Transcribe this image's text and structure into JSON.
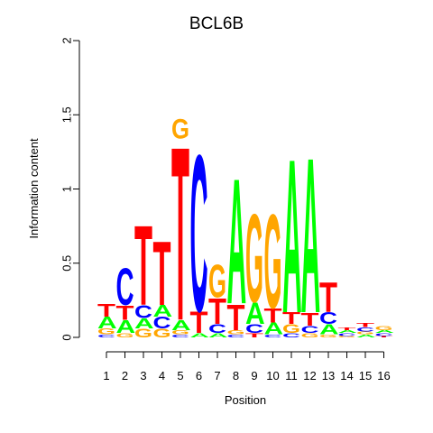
{
  "chart_data": {
    "type": "sequence-logo",
    "title": "BCL6B",
    "xlabel": "Position",
    "ylabel": "Information content",
    "ylim": [
      0,
      2
    ],
    "yticks": [
      "0",
      "0.5",
      "1",
      "1.5",
      "2"
    ],
    "xticks": [
      "1",
      "2",
      "3",
      "4",
      "5",
      "6",
      "7",
      "8",
      "9",
      "10",
      "11",
      "12",
      "13",
      "14",
      "15",
      "16"
    ],
    "colors": {
      "A": "#00ff00",
      "C": "#0000ff",
      "G": "#ffa500",
      "T": "#ff0000"
    },
    "positions": [
      {
        "position": 1,
        "stack": [
          [
            "C",
            0.02
          ],
          [
            "G",
            0.04
          ],
          [
            "A",
            0.08
          ],
          [
            "T",
            0.09
          ]
        ]
      },
      {
        "position": 2,
        "stack": [
          [
            "G",
            0.03
          ],
          [
            "A",
            0.09
          ],
          [
            "T",
            0.1
          ],
          [
            "C",
            0.26
          ]
        ]
      },
      {
        "position": 3,
        "stack": [
          [
            "G",
            0.06
          ],
          [
            "A",
            0.07
          ],
          [
            "C",
            0.09
          ],
          [
            "T",
            0.56
          ]
        ]
      },
      {
        "position": 4,
        "stack": [
          [
            "G",
            0.06
          ],
          [
            "C",
            0.08
          ],
          [
            "A",
            0.08
          ],
          [
            "T",
            0.45
          ]
        ]
      },
      {
        "position": 5,
        "stack": [
          [
            "C",
            0.02
          ],
          [
            "G",
            0.03
          ],
          [
            "A",
            0.07
          ],
          [
            "T",
            1.22
          ],
          [
            "G",
            0.14
          ]
        ]
      },
      {
        "position": 6,
        "stack": [
          [
            "A",
            0.03
          ],
          [
            "T",
            0.15
          ],
          [
            "C",
            1.1
          ]
        ]
      },
      {
        "position": 7,
        "stack": [
          [
            "A",
            0.03
          ],
          [
            "C",
            0.06
          ],
          [
            "T",
            0.18
          ],
          [
            "G",
            0.23
          ]
        ]
      },
      {
        "position": 8,
        "stack": [
          [
            "C",
            0.02
          ],
          [
            "G",
            0.03
          ],
          [
            "T",
            0.18
          ],
          [
            "A",
            0.88
          ]
        ]
      },
      {
        "position": 9,
        "stack": [
          [
            "T",
            0.03
          ],
          [
            "C",
            0.06
          ],
          [
            "A",
            0.15
          ],
          [
            "G",
            0.62
          ]
        ]
      },
      {
        "position": 10,
        "stack": [
          [
            "C",
            0.02
          ],
          [
            "A",
            0.08
          ],
          [
            "T",
            0.1
          ],
          [
            "G",
            0.66
          ]
        ]
      },
      {
        "position": 11,
        "stack": [
          [
            "C",
            0.03
          ],
          [
            "G",
            0.06
          ],
          [
            "T",
            0.08
          ],
          [
            "A",
            1.08
          ]
        ]
      },
      {
        "position": 12,
        "stack": [
          [
            "G",
            0.03
          ],
          [
            "C",
            0.05
          ],
          [
            "T",
            0.09
          ],
          [
            "A",
            1.09
          ]
        ]
      },
      {
        "position": 13,
        "stack": [
          [
            "G",
            0.02
          ],
          [
            "A",
            0.07
          ],
          [
            "C",
            0.08
          ],
          [
            "T",
            0.21
          ]
        ]
      },
      {
        "position": 14,
        "stack": [
          [
            "G",
            0.01
          ],
          [
            "C",
            0.02
          ],
          [
            "A",
            0.02
          ],
          [
            "T",
            0.02
          ]
        ]
      },
      {
        "position": 15,
        "stack": [
          [
            "A",
            0.02
          ],
          [
            "G",
            0.02
          ],
          [
            "C",
            0.03
          ],
          [
            "T",
            0.03
          ]
        ]
      },
      {
        "position": 16,
        "stack": [
          [
            "T",
            0.01
          ],
          [
            "C",
            0.02
          ],
          [
            "A",
            0.02
          ],
          [
            "G",
            0.03
          ]
        ]
      }
    ]
  }
}
